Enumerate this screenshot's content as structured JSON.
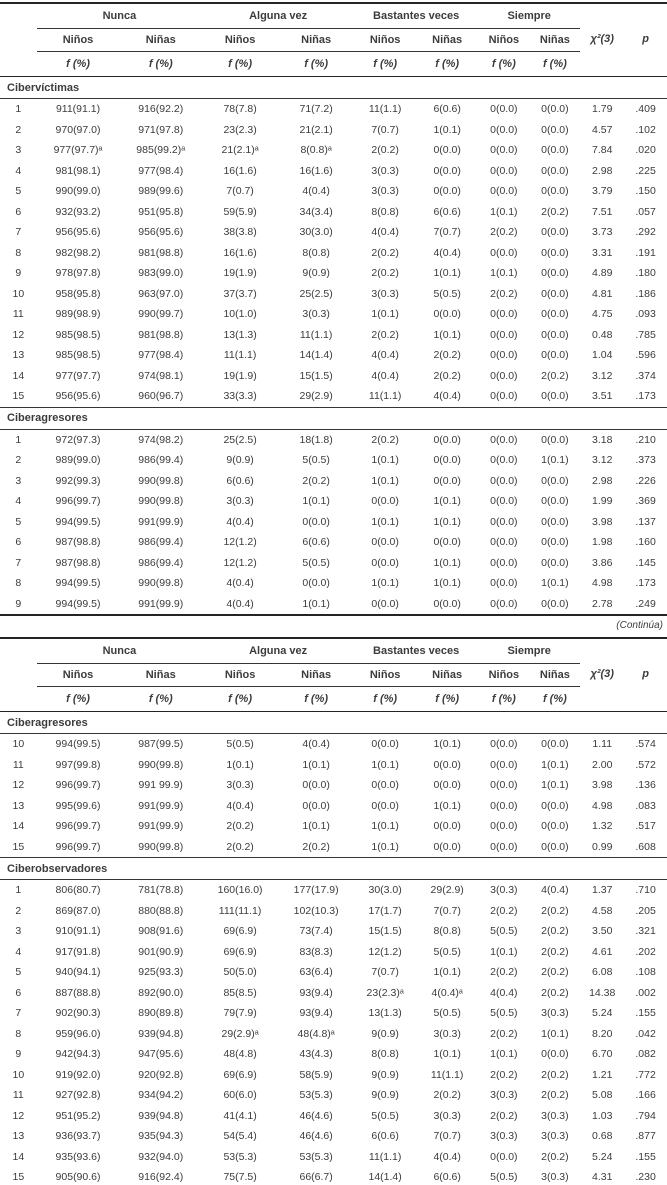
{
  "header": {
    "groups": [
      "Nunca",
      "Alguna vez",
      "Bastantes veces",
      "Siempre"
    ],
    "ninos": "Niños",
    "ninas": "Niñas",
    "freq_label": "f (%)",
    "chi_label": "χ²(3)",
    "p_label": "p"
  },
  "continua": "(Continúa)",
  "part1": {
    "sections": [
      {
        "label": "Cibervíctimas",
        "rows": [
          [
            "1",
            "911(91.1)",
            "916(92.2)",
            "78(7.8)",
            "71(7.2)",
            "11(1.1)",
            "6(0.6)",
            "0(0.0)",
            "0(0.0)",
            "1.79",
            ".409"
          ],
          [
            "2",
            "970(97.0)",
            "971(97.8)",
            "23(2.3)",
            "21(2.1)",
            "7(0.7)",
            "1(0.1)",
            "0(0.0)",
            "0(0.0)",
            "4.57",
            ".102"
          ],
          [
            "3",
            "977(97.7)ᵃ",
            "985(99.2)ᵃ",
            "21(2.1)ᵃ",
            "8(0.8)ᵃ",
            "2(0.2)",
            "0(0.0)",
            "0(0.0)",
            "0(0.0)",
            "7.84",
            ".020"
          ],
          [
            "4",
            "981(98.1)",
            "977(98.4)",
            "16(1.6)",
            "16(1.6)",
            "3(0.3)",
            "0(0.0)",
            "0(0.0)",
            "0(0.0)",
            "2.98",
            ".225"
          ],
          [
            "5",
            "990(99.0)",
            "989(99.6)",
            "7(0.7)",
            "4(0.4)",
            "3(0.3)",
            "0(0.0)",
            "0(0.0)",
            "0(0.0)",
            "3.79",
            ".150"
          ],
          [
            "6",
            "932(93.2)",
            "951(95.8)",
            "59(5.9)",
            "34(3.4)",
            "8(0.8)",
            "6(0.6)",
            "1(0.1)",
            "2(0.2)",
            "7.51",
            ".057"
          ],
          [
            "7",
            "956(95.6)",
            "956(95.6)",
            "38(3.8)",
            "30(3.0)",
            "4(0.4)",
            "7(0.7)",
            "2(0.2)",
            "0(0.0)",
            "3.73",
            ".292"
          ],
          [
            "8",
            "982(98.2)",
            "981(98.8)",
            "16(1.6)",
            "8(0.8)",
            "2(0.2)",
            "4(0.4)",
            "0(0.0)",
            "0(0.0)",
            "3.31",
            ".191"
          ],
          [
            "9",
            "978(97.8)",
            "983(99.0)",
            "19(1.9)",
            "9(0.9)",
            "2(0.2)",
            "1(0.1)",
            "1(0.1)",
            "0(0.0)",
            "4.89",
            ".180"
          ],
          [
            "10",
            "958(95.8)",
            "963(97.0)",
            "37(3.7)",
            "25(2.5)",
            "3(0.3)",
            "5(0.5)",
            "2(0.2)",
            "0(0.0)",
            "4.81",
            ".186"
          ],
          [
            "11",
            "989(98.9)",
            "990(99.7)",
            "10(1.0)",
            "3(0.3)",
            "1(0.1)",
            "0(0.0)",
            "0(0.0)",
            "0(0.0)",
            "4.75",
            ".093"
          ],
          [
            "12",
            "985(98.5)",
            "981(98.8)",
            "13(1.3)",
            "11(1.1)",
            "2(0.2)",
            "1(0.1)",
            "0(0.0)",
            "0(0.0)",
            "0.48",
            ".785"
          ],
          [
            "13",
            "985(98.5)",
            "977(98.4)",
            "11(1.1)",
            "14(1.4)",
            "4(0.4)",
            "2(0.2)",
            "0(0.0)",
            "0(0.0)",
            "1.04",
            ".596"
          ],
          [
            "14",
            "977(97.7)",
            "974(98.1)",
            "19(1.9)",
            "15(1.5)",
            "4(0.4)",
            "2(0.2)",
            "0(0.0)",
            "2(0.2)",
            "3.12",
            ".374"
          ],
          [
            "15",
            "956(95.6)",
            "960(96.7)",
            "33(3.3)",
            "29(2.9)",
            "11(1.1)",
            "4(0.4)",
            "0(0.0)",
            "0(0.0)",
            "3.51",
            ".173"
          ]
        ]
      },
      {
        "label": "Ciberagresores",
        "rows": [
          [
            "1",
            "972(97.3)",
            "974(98.2)",
            "25(2.5)",
            "18(1.8)",
            "2(0.2)",
            "0(0.0)",
            "0(0.0)",
            "0(0.0)",
            "3.18",
            ".210"
          ],
          [
            "2",
            "989(99.0)",
            "986(99.4)",
            "9(0.9)",
            "5(0.5)",
            "1(0.1)",
            "0(0.0)",
            "0(0.0)",
            "1(0.1)",
            "3.12",
            ".373"
          ],
          [
            "3",
            "992(99.3)",
            "990(99.8)",
            "6(0.6)",
            "2(0.2)",
            "1(0.1)",
            "0(0.0)",
            "0(0.0)",
            "0(0.0)",
            "2.98",
            ".226"
          ],
          [
            "4",
            "996(99.7)",
            "990(99.8)",
            "3(0.3)",
            "1(0.1)",
            "0(0.0)",
            "1(0.1)",
            "0(0.0)",
            "0(0.0)",
            "1.99",
            ".369"
          ],
          [
            "5",
            "994(99.5)",
            "991(99.9)",
            "4(0.4)",
            "0(0.0)",
            "1(0.1)",
            "1(0.1)",
            "0(0.0)",
            "0(0.0)",
            "3.98",
            ".137"
          ],
          [
            "6",
            "987(98.8)",
            "986(99.4)",
            "12(1.2)",
            "6(0.6)",
            "0(0.0)",
            "0(0.0)",
            "0(0.0)",
            "0(0.0)",
            "1.98",
            ".160"
          ],
          [
            "7",
            "987(98.8)",
            "986(99.4)",
            "12(1.2)",
            "5(0.5)",
            "0(0.0)",
            "1(0.1)",
            "0(0.0)",
            "0(0.0)",
            "3.86",
            ".145"
          ],
          [
            "8",
            "994(99.5)",
            "990(99.8)",
            "4(0.4)",
            "0(0.0)",
            "1(0.1)",
            "1(0.1)",
            "0(0.0)",
            "1(0.1)",
            "4.98",
            ".173"
          ],
          [
            "9",
            "994(99.5)",
            "991(99.9)",
            "4(0.4)",
            "1(0.1)",
            "0(0.0)",
            "0(0.0)",
            "0(0.0)",
            "0(0.0)",
            "2.78",
            ".249"
          ]
        ]
      }
    ]
  },
  "part2": {
    "sections": [
      {
        "label": "Ciberagresores",
        "rows": [
          [
            "10",
            "994(99.5)",
            "987(99.5)",
            "5(0.5)",
            "4(0.4)",
            "0(0.0)",
            "1(0.1)",
            "0(0.0)",
            "0(0.0)",
            "1.11",
            ".574"
          ],
          [
            "11",
            "997(99.8)",
            "990(99.8)",
            "1(0.1)",
            "1(0.1)",
            "1(0.1)",
            "0(0.0)",
            "0(0.0)",
            "1(0.1)",
            "2.00",
            ".572"
          ],
          [
            "12",
            "996(99.7)",
            "991 99.9)",
            "3(0.3)",
            "0(0.0)",
            "0(0.0)",
            "0(0.0)",
            "0(0.0)",
            "1(0.1)",
            "3.98",
            ".136"
          ],
          [
            "13",
            "995(99.6)",
            "991(99.9)",
            "4(0.4)",
            "0(0.0)",
            "0(0.0)",
            "1(0.1)",
            "0(0.0)",
            "0(0.0)",
            "4.98",
            ".083"
          ],
          [
            "14",
            "996(99.7)",
            "991(99.9)",
            "2(0.2)",
            "1(0.1)",
            "1(0.1)",
            "0(0.0)",
            "0(0.0)",
            "0(0.0)",
            "1.32",
            ".517"
          ],
          [
            "15",
            "996(99.7)",
            "990(99.8)",
            "2(0.2)",
            "2(0.2)",
            "1(0.1)",
            "0(0.0)",
            "0(0.0)",
            "0(0.0)",
            "0.99",
            ".608"
          ]
        ]
      },
      {
        "label": "Ciberobservadores",
        "rows": [
          [
            "1",
            "806(80.7)",
            "781(78.8)",
            "160(16.0)",
            "177(17.9)",
            "30(3.0)",
            "29(2.9)",
            "3(0.3)",
            "4(0.4)",
            "1.37",
            ".710"
          ],
          [
            "2",
            "869(87.0)",
            "880(88.8)",
            "111(11.1)",
            "102(10.3)",
            "17(1.7)",
            "7(0.7)",
            "2(0.2)",
            "2(0.2)",
            "4.58",
            ".205"
          ],
          [
            "3",
            "910(91.1)",
            "908(91.6)",
            "69(6.9)",
            "73(7.4)",
            "15(1.5)",
            "8(0.8)",
            "5(0.5)",
            "2(0.2)",
            "3.50",
            ".321"
          ],
          [
            "4",
            "917(91.8)",
            "901(90.9)",
            "69(6.9)",
            "83(8.3)",
            "12(1.2)",
            "5(0.5)",
            "1(0.1)",
            "2(0.2)",
            "4.61",
            ".202"
          ],
          [
            "5",
            "940(94.1)",
            "925(93.3)",
            "50(5.0)",
            "63(6.4)",
            "7(0.7)",
            "1(0.1)",
            "2(0.2)",
            "2(0.2)",
            "6.08",
            ".108"
          ],
          [
            "6",
            "887(88.8)",
            "892(90.0)",
            "85(8.5)",
            "93(9.4)",
            "23(2.3)ᵃ",
            "4(0.4)ᵃ",
            "4(0.4)",
            "2(0.2)",
            "14.38",
            ".002"
          ],
          [
            "7",
            "902(90.3)",
            "890(89.8)",
            "79(7.9)",
            "93(9.4)",
            "13(1.3)",
            "5(0.5)",
            "5(0.5)",
            "3(0.3)",
            "5.24",
            ".155"
          ],
          [
            "8",
            "959(96.0)",
            "939(94.8)",
            "29(2.9)ᵃ",
            "48(4.8)ᵃ",
            "9(0.9)",
            "3(0.3)",
            "2(0.2)",
            "1(0.1)",
            "8.20",
            ".042"
          ],
          [
            "9",
            "942(94.3)",
            "947(95.6)",
            "48(4.8)",
            "43(4.3)",
            "8(0.8)",
            "1(0.1)",
            "1(0.1)",
            "0(0.0)",
            "6.70",
            ".082"
          ],
          [
            "10",
            "919(92.0)",
            "920(92.8)",
            "69(6.9)",
            "58(5.9)",
            "9(0.9)",
            "11(1.1)",
            "2(0.2)",
            "2(0.2)",
            "1.21",
            ".772"
          ],
          [
            "11",
            "927(92.8)",
            "934(94.2)",
            "60(6.0)",
            "53(5.3)",
            "9(0.9)",
            "2(0.2)",
            "3(0.3)",
            "2(0.2)",
            "5.08",
            ".166"
          ],
          [
            "12",
            "951(95.2)",
            "939(94.8)",
            "41(4.1)",
            "46(4.6)",
            "5(0.5)",
            "3(0.3)",
            "2(0.2)",
            "3(0.3)",
            "1.03",
            ".794"
          ],
          [
            "13",
            "936(93.7)",
            "935(94.3)",
            "54(5.4)",
            "46(4.6)",
            "6(0.6)",
            "7(0.7)",
            "3(0.3)",
            "3(0.3)",
            "0.68",
            ".877"
          ],
          [
            "14",
            "935(93.6)",
            "932(94.0)",
            "53(5.3)",
            "53(5.3)",
            "11(1.1)",
            "4(0.4)",
            "0(0.0)",
            "2(0.2)",
            "5.24",
            ".155"
          ],
          [
            "15",
            "905(90.6)",
            "916(92.4)",
            "75(7.5)",
            "66(6.7)",
            "14(1.4)",
            "6(0.6)",
            "5(0.5)",
            "3(0.3)",
            "4.31",
            ".230"
          ]
        ]
      }
    ]
  }
}
